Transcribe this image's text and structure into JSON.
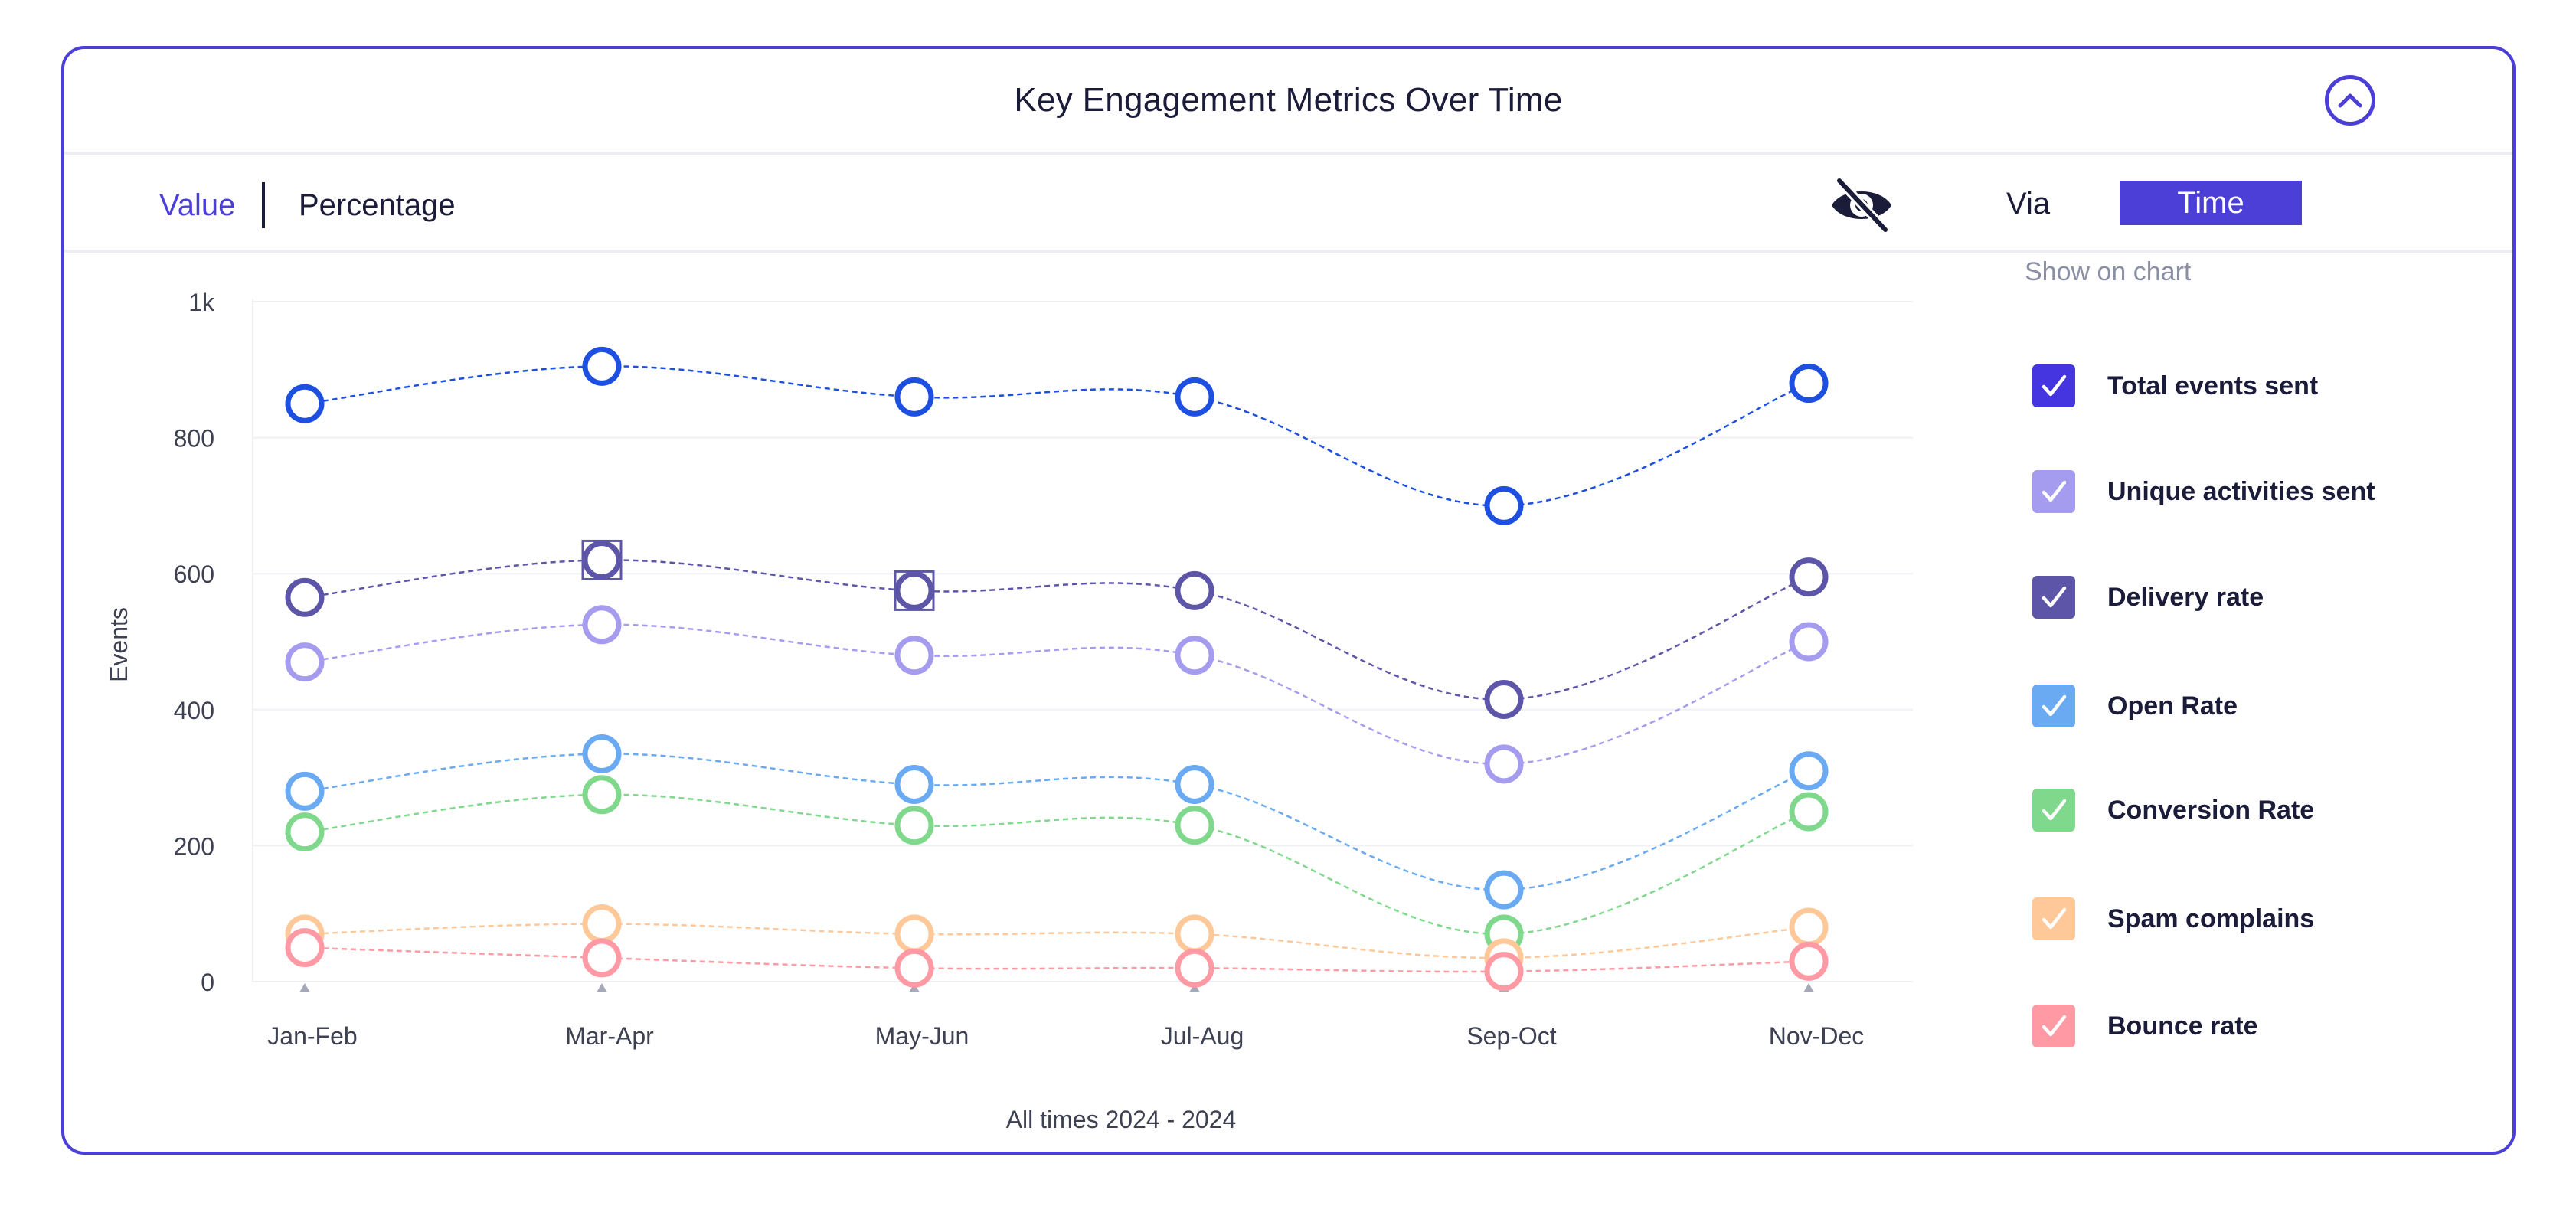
{
  "card": {
    "title": "Key Engagement Metrics Over Time",
    "collapse_icon": "chevron-up-circle-icon",
    "menu_icon": "more-vertical-icon"
  },
  "toolbar": {
    "value_label": "Value",
    "percentage_label": "Percentage",
    "hide_icon": "eye-off-icon",
    "via_label": "Via",
    "time_label": "Time"
  },
  "legend": {
    "title": "Show on chart",
    "items": [
      {
        "label": "Total events sent",
        "color": "#4535e0",
        "checked": true
      },
      {
        "label": "Unique activities sent",
        "color": "#a59cf0",
        "checked": true
      },
      {
        "label": "Delivery rate",
        "color": "#5d56a8",
        "checked": true
      },
      {
        "label": "Open Rate",
        "color": "#6aaaf2",
        "checked": true
      },
      {
        "label": "Conversion Rate",
        "color": "#7fd88c",
        "checked": true
      },
      {
        "label": "Spam complains",
        "color": "#ffc899",
        "checked": true
      },
      {
        "label": "Bounce rate",
        "color": "#ff9aa4",
        "checked": true
      }
    ]
  },
  "footer": {
    "range_label": "All times",
    "years": "2024 - 2024"
  },
  "chart_data": {
    "type": "line",
    "title": "Key Engagement Metrics Over Time",
    "xlabel": "",
    "ylabel": "Events",
    "ylim": [
      0,
      1000
    ],
    "yticks": [
      0,
      200,
      400,
      600,
      800,
      1000
    ],
    "ytick_labels": [
      "0",
      "200",
      "400",
      "600",
      "800",
      "1k"
    ],
    "categories": [
      "Jan-Feb",
      "Mar-Apr",
      "May-Jun",
      "Jul-Aug",
      "Sep-Oct",
      "Nov-Dec"
    ],
    "series": [
      {
        "name": "Total events sent",
        "color": "#1d4fe0",
        "values": [
          850,
          905,
          860,
          860,
          700,
          880
        ]
      },
      {
        "name": "Delivery rate",
        "color": "#5d56a8",
        "values": [
          565,
          620,
          575,
          575,
          415,
          595
        ]
      },
      {
        "name": "Unique activities sent",
        "color": "#a59cf0",
        "values": [
          470,
          525,
          480,
          480,
          320,
          500
        ]
      },
      {
        "name": "Open Rate",
        "color": "#6aaaf2",
        "values": [
          280,
          335,
          290,
          290,
          135,
          310
        ]
      },
      {
        "name": "Conversion Rate",
        "color": "#7fd88c",
        "values": [
          220,
          275,
          230,
          230,
          70,
          250
        ]
      },
      {
        "name": "Spam complains",
        "color": "#ffc899",
        "values": [
          70,
          85,
          70,
          70,
          35,
          80
        ]
      },
      {
        "name": "Bounce rate",
        "color": "#ff9aa4",
        "values": [
          50,
          35,
          20,
          20,
          15,
          30
        ]
      }
    ]
  }
}
